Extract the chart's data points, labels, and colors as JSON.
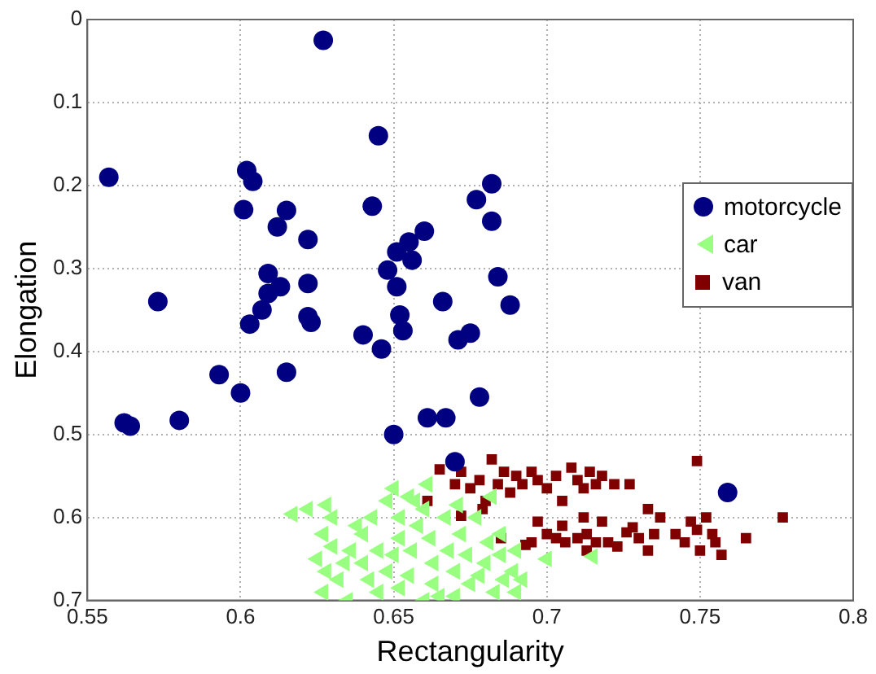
{
  "chart_data": {
    "type": "scatter",
    "xlabel": "Rectangularity",
    "ylabel": "Elongation",
    "xlim": [
      0.55,
      0.8
    ],
    "ylim": [
      0.7,
      0
    ],
    "xticks": [
      0.55,
      0.6,
      0.65,
      0.7,
      0.75,
      0.8
    ],
    "yticks": [
      0,
      0.1,
      0.2,
      0.3,
      0.4,
      0.5,
      0.6,
      0.7
    ],
    "grid": true,
    "legend": "right",
    "series": [
      {
        "name": "motorcycle",
        "color": "#000080",
        "marker": "circle",
        "x": [
          0.627,
          0.645,
          0.557,
          0.602,
          0.604,
          0.682,
          0.677,
          0.643,
          0.601,
          0.615,
          0.682,
          0.612,
          0.66,
          0.655,
          0.622,
          0.651,
          0.656,
          0.648,
          0.684,
          0.609,
          0.609,
          0.613,
          0.573,
          0.622,
          0.666,
          0.688,
          0.607,
          0.622,
          0.652,
          0.651,
          0.623,
          0.603,
          0.653,
          0.64,
          0.671,
          0.675,
          0.646,
          0.615,
          0.593,
          0.6,
          0.678,
          0.562,
          0.564,
          0.58,
          0.661,
          0.667,
          0.65,
          0.67,
          0.759
        ],
        "values": [
          0.025,
          0.14,
          0.19,
          0.182,
          0.195,
          0.198,
          0.217,
          0.225,
          0.229,
          0.23,
          0.243,
          0.25,
          0.255,
          0.268,
          0.265,
          0.28,
          0.29,
          0.302,
          0.31,
          0.306,
          0.33,
          0.322,
          0.34,
          0.318,
          0.34,
          0.344,
          0.35,
          0.358,
          0.356,
          0.322,
          0.365,
          0.367,
          0.375,
          0.38,
          0.386,
          0.378,
          0.397,
          0.425,
          0.428,
          0.45,
          0.455,
          0.486,
          0.49,
          0.483,
          0.48,
          0.48,
          0.5,
          0.533,
          0.57
        ]
      },
      {
        "name": "car",
        "color": "#99ff80",
        "marker": "triangle",
        "x": [
          0.617,
          0.622,
          0.628,
          0.63,
          0.627,
          0.63,
          0.625,
          0.628,
          0.632,
          0.627,
          0.635,
          0.636,
          0.64,
          0.64,
          0.642,
          0.645,
          0.638,
          0.643,
          0.648,
          0.65,
          0.652,
          0.652,
          0.65,
          0.648,
          0.652,
          0.655,
          0.656,
          0.658,
          0.66,
          0.657,
          0.661,
          0.662,
          0.663,
          0.663,
          0.665,
          0.667,
          0.668,
          0.67,
          0.671,
          0.672,
          0.674,
          0.675,
          0.677,
          0.678,
          0.68,
          0.681,
          0.683,
          0.685,
          0.686,
          0.689,
          0.69,
          0.692,
          0.685,
          0.682,
          0.69,
          0.645,
          0.634,
          0.66,
          0.67,
          0.715,
          0.7,
          0.655
        ],
        "values": [
          0.596,
          0.59,
          0.585,
          0.6,
          0.62,
          0.635,
          0.65,
          0.665,
          0.675,
          0.69,
          0.7,
          0.64,
          0.62,
          0.655,
          0.675,
          0.69,
          0.61,
          0.6,
          0.58,
          0.565,
          0.6,
          0.625,
          0.645,
          0.665,
          0.685,
          0.67,
          0.64,
          0.61,
          0.59,
          0.58,
          0.56,
          0.625,
          0.655,
          0.68,
          0.695,
          0.6,
          0.64,
          0.665,
          0.585,
          0.62,
          0.645,
          0.68,
          0.6,
          0.67,
          0.655,
          0.63,
          0.69,
          0.645,
          0.675,
          0.665,
          0.69,
          0.675,
          0.62,
          0.575,
          0.64,
          0.64,
          0.655,
          0.7,
          0.695,
          0.647,
          0.65,
          0.575
        ]
      },
      {
        "name": "van",
        "color": "#800000",
        "marker": "square",
        "x": [
          0.665,
          0.661,
          0.67,
          0.672,
          0.675,
          0.678,
          0.68,
          0.682,
          0.684,
          0.686,
          0.688,
          0.69,
          0.692,
          0.695,
          0.697,
          0.7,
          0.703,
          0.705,
          0.708,
          0.71,
          0.712,
          0.714,
          0.716,
          0.718,
          0.722,
          0.727,
          0.733,
          0.749,
          0.679,
          0.672,
          0.685,
          0.693,
          0.697,
          0.7,
          0.703,
          0.706,
          0.71,
          0.713,
          0.713,
          0.716,
          0.718,
          0.72,
          0.723,
          0.726,
          0.728,
          0.73,
          0.733,
          0.735,
          0.737,
          0.742,
          0.745,
          0.747,
          0.749,
          0.75,
          0.752,
          0.754,
          0.755,
          0.757,
          0.765,
          0.777,
          0.712,
          0.705,
          0.695
        ],
        "values": [
          0.542,
          0.58,
          0.56,
          0.545,
          0.565,
          0.555,
          0.58,
          0.53,
          0.56,
          0.545,
          0.57,
          0.55,
          0.56,
          0.545,
          0.555,
          0.565,
          0.55,
          0.58,
          0.54,
          0.555,
          0.565,
          0.545,
          0.56,
          0.55,
          0.56,
          0.56,
          0.59,
          0.532,
          0.59,
          0.598,
          0.625,
          0.633,
          0.605,
          0.62,
          0.625,
          0.63,
          0.625,
          0.62,
          0.64,
          0.63,
          0.605,
          0.63,
          0.635,
          0.618,
          0.612,
          0.625,
          0.64,
          0.62,
          0.6,
          0.62,
          0.63,
          0.605,
          0.615,
          0.64,
          0.6,
          0.62,
          0.63,
          0.645,
          0.625,
          0.6,
          0.6,
          0.61,
          0.63
        ]
      }
    ]
  }
}
